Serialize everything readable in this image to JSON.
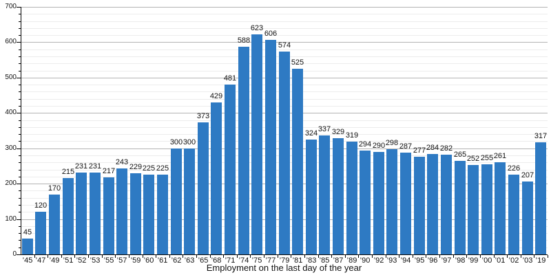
{
  "chart_data": {
    "type": "bar",
    "title": "",
    "xlabel": "Employment on the last day of the year",
    "ylabel": "",
    "categories": [
      "’45",
      "’47",
      "’49",
      "’51",
      "’52",
      "’53",
      "’55",
      "’57",
      "’59",
      "’60",
      "’61",
      "’62",
      "’63",
      "’65",
      "’68",
      "’71",
      "’74",
      "’75",
      "’77",
      "’79",
      "’81",
      "’83",
      "’85",
      "’87",
      "’89",
      "’90",
      "’92",
      "’93",
      "’94",
      "’95",
      "’96",
      "’97",
      "’98",
      "’99",
      "’00",
      "’01",
      "’02",
      "’03",
      "’19"
    ],
    "values": [
      45,
      120,
      170,
      215,
      231,
      231,
      217,
      243,
      229,
      225,
      225,
      300,
      300,
      373,
      429,
      481,
      588,
      623,
      606,
      574,
      525,
      324,
      337,
      329,
      319,
      294,
      290,
      298,
      287,
      277,
      284,
      282,
      265,
      252,
      255,
      261,
      226,
      207,
      317
    ],
    "ylim": [
      0,
      700
    ],
    "yticks": [
      0,
      100,
      200,
      300,
      400,
      500,
      600,
      700
    ],
    "ytick_minor_step": 20,
    "grid": "major-and-minor-horizontal",
    "legend": "none",
    "bar_color": "#2e7ac3",
    "major_grid_color": "#b3b3b3",
    "minor_grid_color": "#ececec",
    "axis_color": "#000000",
    "text_color": "#111111"
  }
}
